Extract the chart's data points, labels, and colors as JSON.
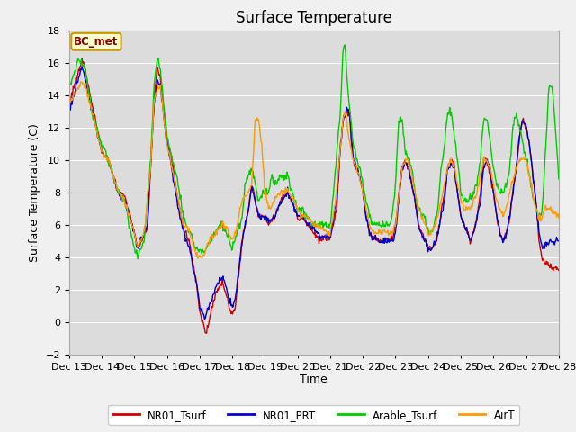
{
  "title": "Surface Temperature",
  "xlabel": "Time",
  "ylabel": "Surface Temperature (C)",
  "ylim": [
    -2,
    18
  ],
  "annotation": "BC_met",
  "series_colors": {
    "NR01_Tsurf": "#cc0000",
    "NR01_PRT": "#0000cc",
    "Arable_Tsurf": "#00cc00",
    "AirT": "#ff9900"
  },
  "background_color": "#dcdcdc",
  "linewidth": 1.0,
  "x_tick_labels": [
    "Dec 13",
    "Dec 14",
    "Dec 15",
    "Dec 16",
    "Dec 17",
    "Dec 18",
    "Dec 19",
    "Dec 20",
    "Dec 21",
    "Dec 22",
    "Dec 23",
    "Dec 24",
    "Dec 25",
    "Dec 26",
    "Dec 27",
    "Dec 28"
  ],
  "y_ticks": [
    -2,
    0,
    2,
    4,
    6,
    8,
    10,
    12,
    14,
    16,
    18
  ],
  "title_fontsize": 12,
  "axis_label_fontsize": 9,
  "tick_fontsize": 8,
  "figsize": [
    6.4,
    4.8
  ],
  "dpi": 100
}
